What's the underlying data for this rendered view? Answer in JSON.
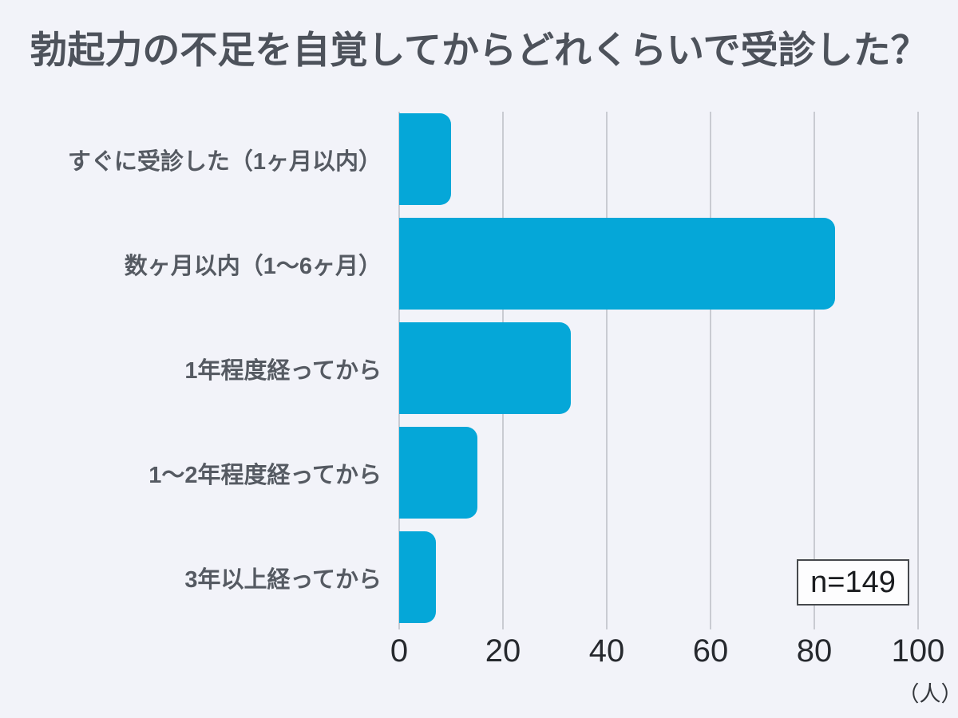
{
  "title": "勃起力の不足を自覚してからどれくらいで受診した？",
  "chart_data": {
    "type": "bar",
    "orientation": "horizontal",
    "title": "勃起力の不足を自覚してからどれくらいで受診した？",
    "categories": [
      "すぐに受診した（1ヶ月以内）",
      "数ヶ月以内（1〜6ヶ月）",
      "1年程度経ってから",
      "1〜2年程度経ってから",
      "3年以上経ってから"
    ],
    "values": [
      10,
      84,
      33,
      15,
      7
    ],
    "xticks": [
      0,
      20,
      40,
      60,
      80,
      100
    ],
    "xlim": [
      0,
      100
    ],
    "unit_label": "（人）",
    "annotation": "n=149",
    "grid": true,
    "legend": "none",
    "bar_color": "#05A7D8",
    "background_color": "#F2F3F9",
    "gridline_color": "#C9CBD2"
  }
}
